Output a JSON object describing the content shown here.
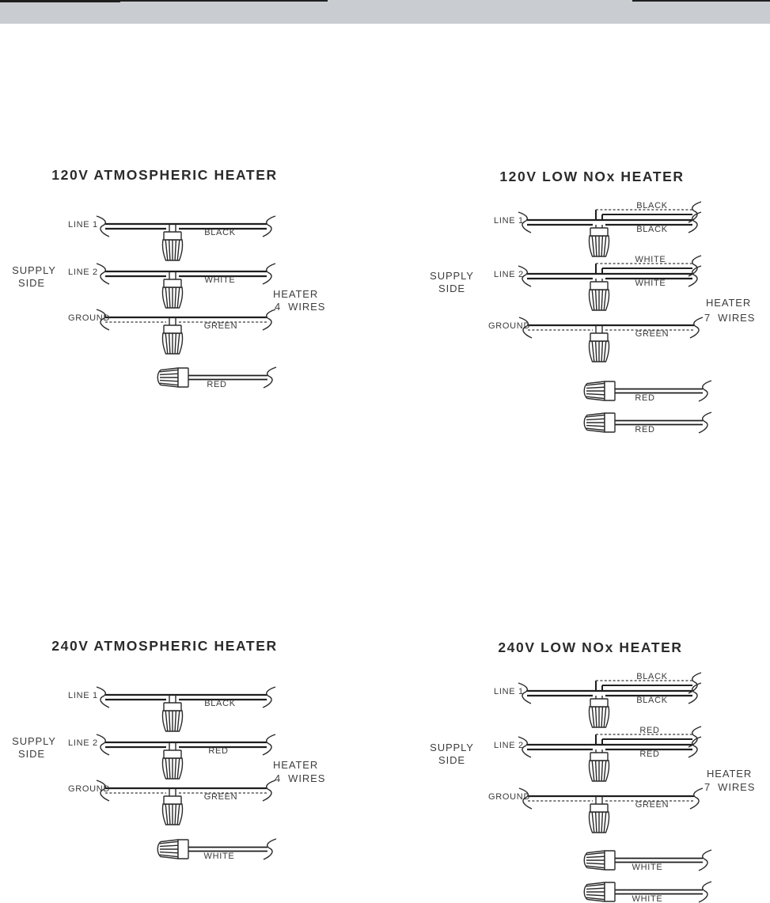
{
  "page": {
    "top_bar_color": "#c9ccd0",
    "line_color": "#1e1e1e"
  },
  "diagrams": [
    {
      "title": "120V ATMOSPHERIC HEATER",
      "supply": [
        "SUPPLY",
        "SIDE"
      ],
      "heater": [
        "HEATER",
        "4  WIRES"
      ],
      "rows": [
        {
          "line": "LINE 1",
          "color": "BLACK"
        },
        {
          "line": "LINE 2",
          "color": "WHITE"
        },
        {
          "line": "GROUND",
          "color": "GREEN"
        }
      ],
      "pigtails": [
        "RED"
      ]
    },
    {
      "title": "120V LOW NOx HEATER",
      "supply": [
        "SUPPLY",
        "SIDE"
      ],
      "heater": [
        "HEATER",
        "7  WIRES"
      ],
      "rows": [
        {
          "line": "LINE 1",
          "branch_color": "BLACK",
          "color": "BLACK"
        },
        {
          "line": "LINE 2",
          "branch_color": "WHITE",
          "color": "WHITE"
        },
        {
          "line": "GROUND",
          "color": "GREEN"
        }
      ],
      "pigtails": [
        "RED",
        "RED"
      ]
    },
    {
      "title": "240V ATMOSPHERIC HEATER",
      "supply": [
        "SUPPLY",
        "SIDE"
      ],
      "heater": [
        "HEATER",
        "4  WIRES"
      ],
      "rows": [
        {
          "line": "LINE 1",
          "color": "BLACK"
        },
        {
          "line": "LINE 2",
          "color": "RED"
        },
        {
          "line": "GROUND",
          "color": "GREEN"
        }
      ],
      "pigtails": [
        "WHITE"
      ]
    },
    {
      "title": "240V LOW NOx HEATER",
      "supply": [
        "SUPPLY",
        "SIDE"
      ],
      "heater": [
        "HEATER",
        "7  WIRES"
      ],
      "rows": [
        {
          "line": "LINE 1",
          "branch_color": "BLACK",
          "color": "BLACK"
        },
        {
          "line": "LINE 2",
          "branch_color": "RED",
          "color": "RED"
        },
        {
          "line": "GROUND",
          "color": "GREEN"
        }
      ],
      "pigtails": [
        "WHITE",
        "WHITE"
      ]
    }
  ]
}
